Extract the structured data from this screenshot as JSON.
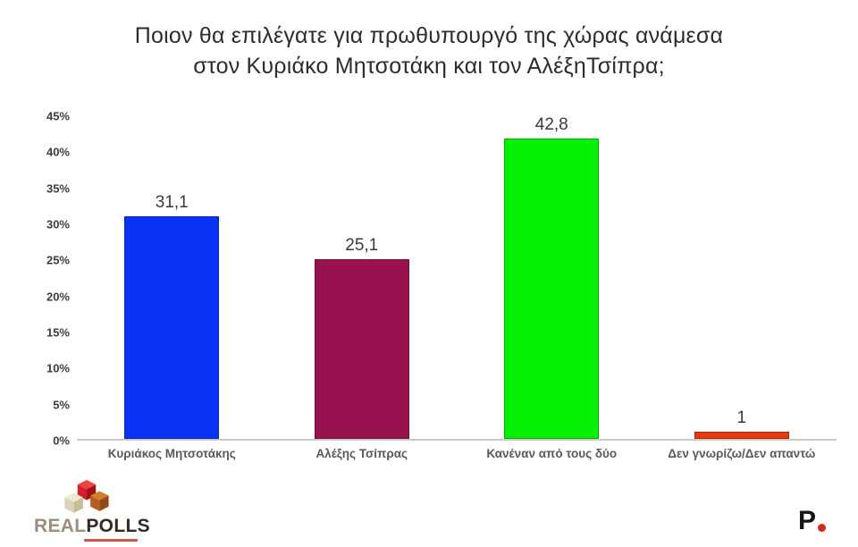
{
  "title": "Ποιον θα επιλέγατε για πρωθυπουργό της χώρας ανάμεσα\nστον Κυριάκο Μητσοτάκη και τον ΑλέξηΤσίπρα;",
  "chart_data": {
    "type": "bar",
    "title": "Ποιον θα επιλέγατε για πρωθυπουργό της χώρας ανάμεσα στον Κυριάκο Μητσοτάκη και τον ΑλέξηΤσίπρα;",
    "categories": [
      "Κυριάκος Μητσοτάκης",
      "Αλέξης Τσίπρας",
      "Κανέναν από τους δύο",
      "Δεν γνωρίζω/Δεν απαντώ"
    ],
    "values": [
      31.1,
      25.1,
      42.8,
      1
    ],
    "value_labels": [
      "31,1",
      "25,1",
      "42,8",
      "1"
    ],
    "bar_colors": [
      "#0a33f5",
      "#97124f",
      "#06f006",
      "#e8380e"
    ],
    "xlabel": "",
    "ylabel": "",
    "ylim": [
      0,
      45
    ],
    "ytick_step": 5,
    "yticks": [
      "45%",
      "40%",
      "35%",
      "30%",
      "25%",
      "20%",
      "15%",
      "10%",
      "5%",
      "0%"
    ],
    "grid": false,
    "legend": false
  },
  "footer": {
    "left_logo": {
      "brand_real": "REAL",
      "brand_polls": "POLLS",
      "cubes_icon": "isometric-cubes-icon"
    },
    "right_logo": {
      "letter": "P",
      "dot_color": "#d42b1e"
    }
  }
}
